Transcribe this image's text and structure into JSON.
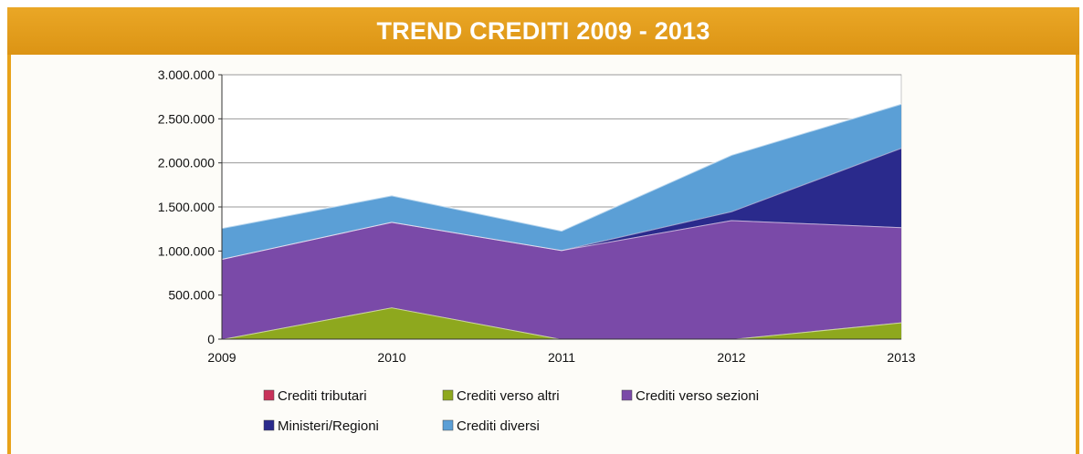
{
  "chart_data": {
    "type": "area",
    "stacked": true,
    "title": "TREND CREDITI 2009 - 2013",
    "x": [
      "2009",
      "2010",
      "2011",
      "2012",
      "2013"
    ],
    "ylim": [
      0,
      3000000
    ],
    "yticks": [
      0,
      500000,
      1000000,
      1500000,
      2000000,
      2500000,
      3000000
    ],
    "ytick_labels": [
      "0",
      "500.000",
      "1.000.000",
      "1.500.000",
      "2.000.000",
      "2.500.000",
      "3.000.000"
    ],
    "grid": true,
    "legend_position": "bottom",
    "series": [
      {
        "name": "Crediti tributari",
        "color": "#c8325a",
        "values": [
          0,
          0,
          0,
          0,
          0
        ]
      },
      {
        "name": "Crediti verso altri",
        "color": "#8ea81e",
        "values": [
          0,
          360000,
          0,
          0,
          190000
        ]
      },
      {
        "name": "Crediti verso sezioni",
        "color": "#7a4aa8",
        "values": [
          910000,
          970000,
          1010000,
          1350000,
          1080000
        ]
      },
      {
        "name": "Ministeri/Regioni",
        "color": "#2a2a8c",
        "values": [
          0,
          0,
          0,
          100000,
          900000
        ]
      },
      {
        "name": "Crediti diversi",
        "color": "#5b9fd6",
        "values": [
          350000,
          300000,
          220000,
          640000,
          500000
        ]
      }
    ]
  }
}
